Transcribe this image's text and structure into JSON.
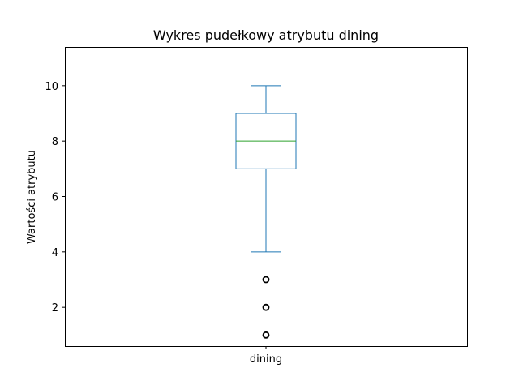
{
  "chart_data": {
    "type": "box",
    "title": "Wykres pudełkowy atrybutu dining",
    "xlabel": "",
    "ylabel": "Wartości atrybutu",
    "categories": [
      "dining"
    ],
    "ylim": [
      0.6,
      11.4
    ],
    "yticks": [
      2,
      4,
      6,
      8,
      10
    ],
    "grid": false,
    "legend": "none",
    "boxes": [
      {
        "category": "dining",
        "whisker_low": 4,
        "q1": 7,
        "median": 8,
        "q3": 9,
        "whisker_high": 10,
        "outliers": [
          3,
          2,
          1
        ]
      }
    ],
    "colors": {
      "box": "#1f77b4",
      "median": "#2ca02c",
      "outlier": "#000000"
    }
  }
}
